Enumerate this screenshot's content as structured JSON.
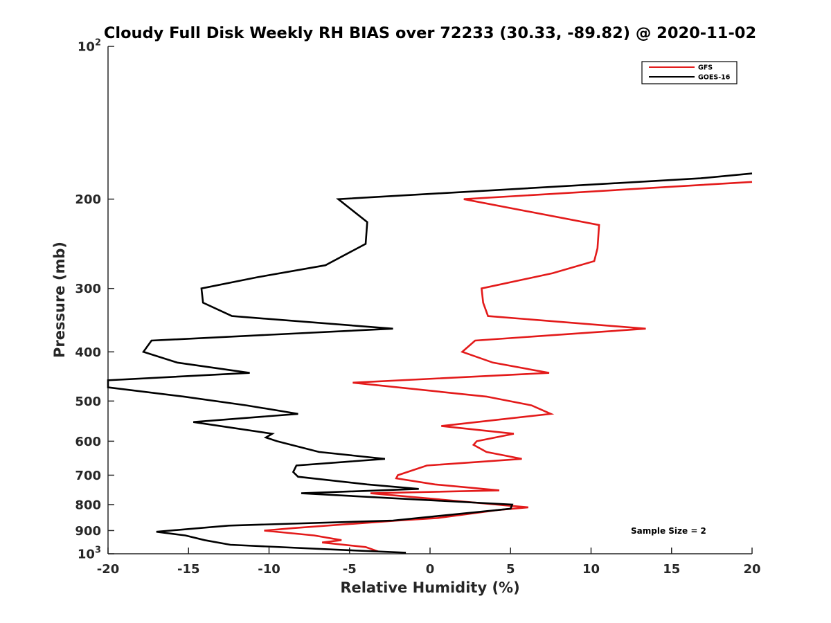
{
  "chart_data": {
    "type": "line",
    "title": "Cloudy Full Disk Weekly RH BIAS over 72233 (30.33, -89.82) @ 2020-11-02",
    "xlabel": "Relative Humidity (%)",
    "ylabel": "Pressure (mb)",
    "xlim": [
      -20,
      20
    ],
    "ylim": [
      100,
      1000
    ],
    "y_scale": "log",
    "y_reversed": true,
    "grid": false,
    "legend_position": "top-right",
    "x_ticks": [
      -20,
      -15,
      -10,
      -5,
      0,
      5,
      10,
      15,
      20
    ],
    "y_ticks": [
      {
        "value": 100,
        "label": "10",
        "sup": "2"
      },
      {
        "value": 200,
        "label": "200"
      },
      {
        "value": 300,
        "label": "300"
      },
      {
        "value": 400,
        "label": "400"
      },
      {
        "value": 500,
        "label": "500"
      },
      {
        "value": 600,
        "label": "600"
      },
      {
        "value": 700,
        "label": "700"
      },
      {
        "value": 800,
        "label": "800"
      },
      {
        "value": 900,
        "label": "900"
      },
      {
        "value": 1000,
        "label": "10",
        "sup": "3"
      }
    ],
    "annotation": "Sample Size = 2",
    "series": [
      {
        "name": "GFS",
        "color": "#e31a1a",
        "points": [
          [
            20.0,
            185
          ],
          [
            2.1,
            200
          ],
          [
            10.5,
            225
          ],
          [
            10.4,
            250
          ],
          [
            10.2,
            265
          ],
          [
            7.6,
            280
          ],
          [
            3.2,
            300
          ],
          [
            3.3,
            320
          ],
          [
            3.6,
            340
          ],
          [
            13.4,
            360
          ],
          [
            2.8,
            380
          ],
          [
            2.0,
            400
          ],
          [
            3.9,
            420
          ],
          [
            7.4,
            440
          ],
          [
            -4.8,
            460
          ],
          [
            3.5,
            490
          ],
          [
            6.3,
            510
          ],
          [
            7.5,
            530
          ],
          [
            0.7,
            560
          ],
          [
            5.2,
            580
          ],
          [
            2.9,
            600
          ],
          [
            2.7,
            610
          ],
          [
            3.5,
            630
          ],
          [
            5.7,
            650
          ],
          [
            -0.2,
            670
          ],
          [
            -2.0,
            700
          ],
          [
            -2.1,
            710
          ],
          [
            0.3,
            730
          ],
          [
            4.3,
            750
          ],
          [
            -3.7,
            760
          ],
          [
            6.1,
            810
          ],
          [
            4.2,
            820
          ],
          [
            0.5,
            850
          ],
          [
            -2.0,
            860
          ],
          [
            -8.5,
            890
          ],
          [
            -10.3,
            900
          ],
          [
            -7.2,
            920
          ],
          [
            -5.5,
            940
          ],
          [
            -6.7,
            950
          ],
          [
            -4.0,
            970
          ],
          [
            -3.2,
            990
          ]
        ]
      },
      {
        "name": "GOES-16",
        "color": "#000000",
        "points": [
          [
            20.0,
            178
          ],
          [
            16.8,
            182
          ],
          [
            -5.7,
            200
          ],
          [
            -3.9,
            222
          ],
          [
            -4.0,
            245
          ],
          [
            -6.5,
            270
          ],
          [
            -10.7,
            285
          ],
          [
            -14.2,
            300
          ],
          [
            -14.1,
            320
          ],
          [
            -12.3,
            340
          ],
          [
            -2.3,
            360
          ],
          [
            -17.3,
            380
          ],
          [
            -17.8,
            400
          ],
          [
            -15.7,
            420
          ],
          [
            -11.2,
            440
          ],
          [
            -20.0,
            455
          ],
          [
            -20.0,
            470
          ],
          [
            -15.3,
            490
          ],
          [
            -11.4,
            510
          ],
          [
            -8.2,
            530
          ],
          [
            -14.7,
            550
          ],
          [
            -9.8,
            580
          ],
          [
            -10.2,
            590
          ],
          [
            -9.5,
            600
          ],
          [
            -6.9,
            630
          ],
          [
            -2.8,
            650
          ],
          [
            -8.3,
            670
          ],
          [
            -8.5,
            690
          ],
          [
            -8.2,
            705
          ],
          [
            -3.9,
            730
          ],
          [
            -0.7,
            745
          ],
          [
            -8.0,
            760
          ],
          [
            5.1,
            800
          ],
          [
            5.0,
            815
          ],
          [
            -2.3,
            860
          ],
          [
            -12.5,
            880
          ],
          [
            -17.0,
            905
          ],
          [
            -15.2,
            920
          ],
          [
            -14.0,
            940
          ],
          [
            -12.4,
            960
          ],
          [
            -6.3,
            980
          ],
          [
            -1.5,
            995
          ]
        ]
      }
    ]
  }
}
